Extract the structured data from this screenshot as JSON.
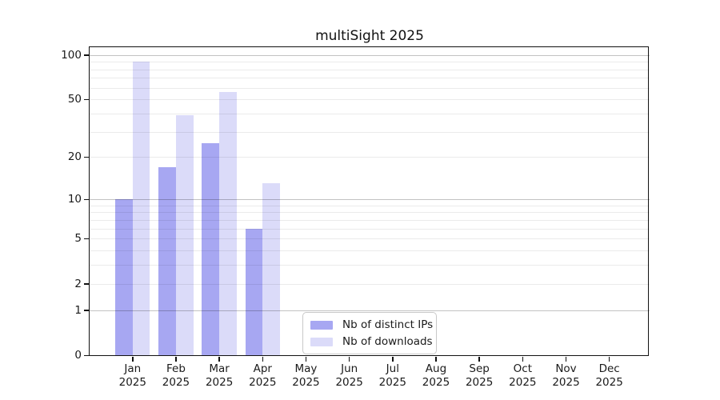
{
  "title": "multiSight 2025",
  "chart_data": {
    "type": "bar",
    "title": "multiSight 2025",
    "categories": [
      "Jan 2025",
      "Feb 2025",
      "Mar 2025",
      "Apr 2025",
      "May 2025",
      "Jun 2025",
      "Jul 2025",
      "Aug 2025",
      "Sep 2025",
      "Oct 2025",
      "Nov 2025",
      "Dec 2025"
    ],
    "series": [
      {
        "name": "Nb of distinct IPs",
        "color": "#a7a7f2",
        "values": [
          10,
          17,
          25,
          6,
          null,
          null,
          null,
          null,
          null,
          null,
          null,
          null
        ]
      },
      {
        "name": "Nb of downloads",
        "color": "#dbdbf9",
        "values": [
          90,
          39,
          56,
          13,
          null,
          null,
          null,
          null,
          null,
          null,
          null,
          null
        ]
      }
    ],
    "y_scale": "symlog (position proportional to ln(1+v))",
    "y_ticks_labeled": [
      0,
      1,
      2,
      5,
      10,
      20,
      50,
      100
    ],
    "y_gridlines_major": [
      1,
      10,
      100
    ],
    "y_gridlines_minor": [
      2,
      3,
      4,
      5,
      6,
      7,
      8,
      9,
      20,
      30,
      40,
      50,
      60,
      70,
      80,
      90
    ],
    "ylim": [
      0,
      114
    ],
    "xlabel": "",
    "ylabel": "",
    "grid": "horizontal",
    "legend_position": "bottom-center-inside"
  },
  "legend": {
    "entries": [
      "Nb of distinct IPs",
      "Nb of downloads"
    ]
  }
}
